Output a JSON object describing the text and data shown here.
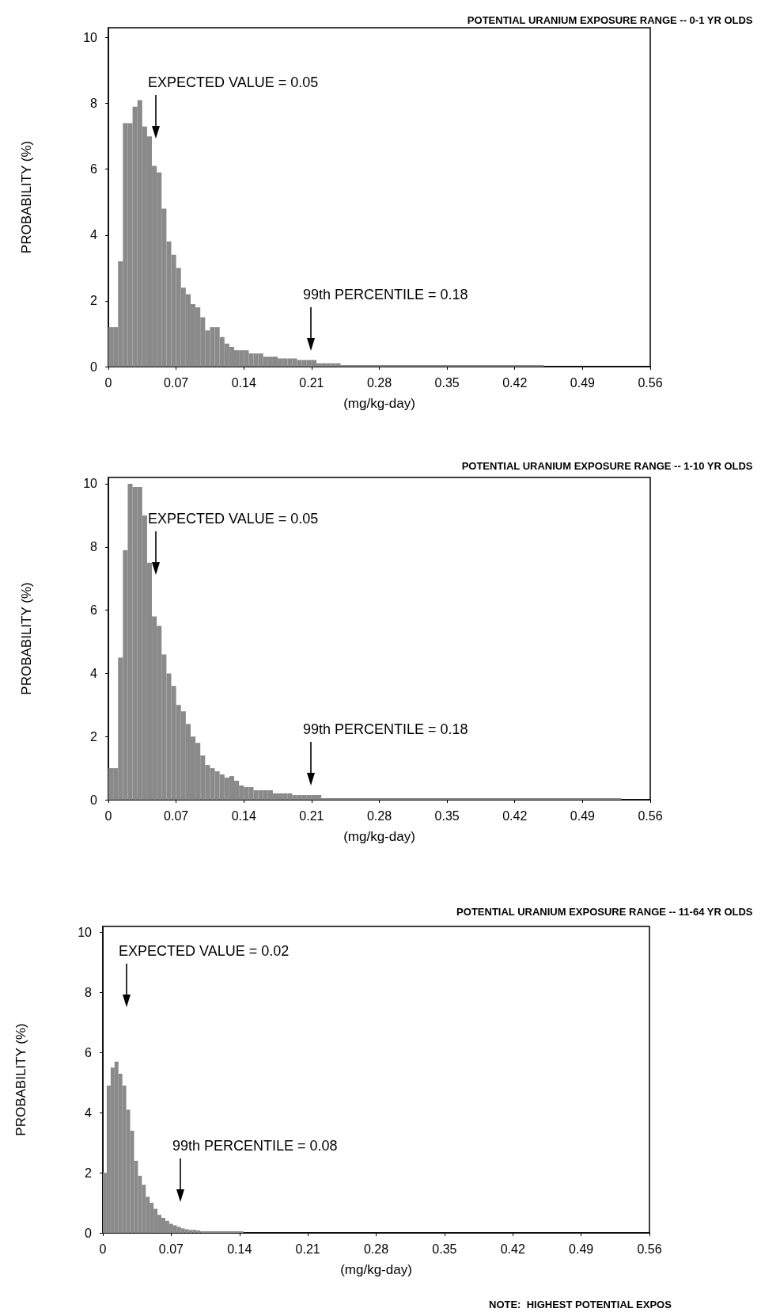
{
  "chart_data": [
    {
      "type": "histogram",
      "title": "POTENTIAL URANIUM EXPOSURE RANGE -- 0-1 YR OLDS",
      "xlabel": "(mg/kg-day)",
      "ylabel": "PROBABILITY (%)",
      "color": "#8a8a8a",
      "xlim": [
        0,
        0.56
      ],
      "xticks": [
        0,
        0.07,
        0.14,
        0.21,
        0.28,
        0.35,
        0.42,
        0.49,
        0.56
      ],
      "ylim": [
        0,
        10.3
      ],
      "yticks": [
        0,
        2,
        4,
        6,
        8,
        10
      ],
      "grid": false,
      "bins": [
        0,
        0.005,
        0.01,
        0.015,
        0.02,
        0.025,
        0.03,
        0.035,
        0.04,
        0.045,
        0.05,
        0.055,
        0.06,
        0.065,
        0.07,
        0.075,
        0.08,
        0.085,
        0.09,
        0.095,
        0.1,
        0.105,
        0.11,
        0.115,
        0.12,
        0.125,
        0.13,
        0.135,
        0.14,
        0.145,
        0.15,
        0.155,
        0.16,
        0.165,
        0.17,
        0.175,
        0.18,
        0.185,
        0.19,
        0.195,
        0.2,
        0.205,
        0.21,
        0.215,
        0.22,
        0.225,
        0.23,
        0.235,
        0.24,
        0.45
      ],
      "values": [
        1.2,
        1.2,
        3.2,
        7.4,
        7.4,
        7.9,
        8.1,
        7.3,
        7.0,
        6.1,
        5.9,
        4.8,
        3.8,
        3.4,
        3.0,
        2.4,
        2.2,
        1.9,
        1.8,
        1.5,
        1.1,
        1.2,
        1.2,
        0.9,
        0.7,
        0.6,
        0.5,
        0.5,
        0.5,
        0.4,
        0.4,
        0.4,
        0.3,
        0.3,
        0.3,
        0.25,
        0.25,
        0.25,
        0.25,
        0.2,
        0.2,
        0.2,
        0.2,
        0.1,
        0.1,
        0.1,
        0.1,
        0.1,
        0.05
      ],
      "annotations": [
        "EXPECTED VALUE = 0.05",
        "99th PERCENTILE = 0.18"
      ]
    },
    {
      "type": "histogram",
      "title": "POTENTIAL URANIUM EXPOSURE RANGE -- 1-10 YR OLDS",
      "xlabel": "(mg/kg-day)",
      "ylabel": "PROBABILITY (%)",
      "color": "#8a8a8a",
      "xlim": [
        0,
        0.56
      ],
      "xticks": [
        0,
        0.07,
        0.14,
        0.21,
        0.28,
        0.35,
        0.42,
        0.49,
        0.56
      ],
      "ylim": [
        0,
        10.2
      ],
      "yticks": [
        0,
        2,
        4,
        6,
        8,
        10
      ],
      "grid": false,
      "bins": [
        0,
        0.005,
        0.01,
        0.015,
        0.02,
        0.025,
        0.03,
        0.035,
        0.04,
        0.045,
        0.05,
        0.055,
        0.06,
        0.065,
        0.07,
        0.075,
        0.08,
        0.085,
        0.09,
        0.095,
        0.1,
        0.105,
        0.11,
        0.115,
        0.12,
        0.125,
        0.13,
        0.135,
        0.14,
        0.145,
        0.15,
        0.155,
        0.16,
        0.165,
        0.17,
        0.175,
        0.18,
        0.185,
        0.19,
        0.195,
        0.2,
        0.205,
        0.21,
        0.215,
        0.22,
        0.53
      ],
      "values": [
        1.0,
        1.0,
        4.5,
        7.9,
        10.0,
        9.9,
        9.9,
        9.0,
        7.5,
        5.8,
        5.5,
        4.6,
        4.0,
        3.6,
        3.0,
        2.8,
        2.4,
        2.0,
        1.8,
        1.4,
        1.1,
        1.0,
        0.9,
        0.8,
        0.7,
        0.75,
        0.6,
        0.45,
        0.4,
        0.4,
        0.3,
        0.3,
        0.3,
        0.3,
        0.2,
        0.2,
        0.2,
        0.2,
        0.15,
        0.15,
        0.15,
        0.15,
        0.15,
        0.15,
        0.05
      ],
      "annotations": [
        "EXPECTED VALUE = 0.05",
        "99th PERCENTILE = 0.18"
      ]
    },
    {
      "type": "histogram",
      "title": "POTENTIAL URANIUM EXPOSURE RANGE -- 11-64 YR OLDS",
      "xlabel": "(mg/kg-day)",
      "ylabel": "PROBABILITY (%)",
      "color": "#8a8a8a",
      "xlim": [
        0,
        0.56
      ],
      "xticks": [
        0,
        0.07,
        0.14,
        0.21,
        0.28,
        0.35,
        0.42,
        0.49,
        0.56
      ],
      "ylim": [
        0,
        10.2
      ],
      "yticks": [
        0,
        2,
        4,
        6,
        8,
        10
      ],
      "grid": false,
      "bins": [
        0,
        0.004,
        0.008,
        0.012,
        0.016,
        0.02,
        0.024,
        0.028,
        0.032,
        0.036,
        0.04,
        0.044,
        0.048,
        0.052,
        0.056,
        0.06,
        0.064,
        0.068,
        0.072,
        0.076,
        0.08,
        0.084,
        0.088,
        0.092,
        0.096,
        0.1,
        0.144
      ],
      "values": [
        2.0,
        4.9,
        5.5,
        5.7,
        5.3,
        4.9,
        4.1,
        3.4,
        2.4,
        1.9,
        1.6,
        1.2,
        1.0,
        0.8,
        0.6,
        0.5,
        0.4,
        0.3,
        0.25,
        0.2,
        0.15,
        0.12,
        0.1,
        0.1,
        0.08,
        0.05
      ],
      "annotations": [
        "EXPECTED VALUE = 0.02",
        "99th PERCENTILE = 0.08",
        "NOTE:  HIGHEST POTENTIAL EXPOS"
      ]
    }
  ]
}
